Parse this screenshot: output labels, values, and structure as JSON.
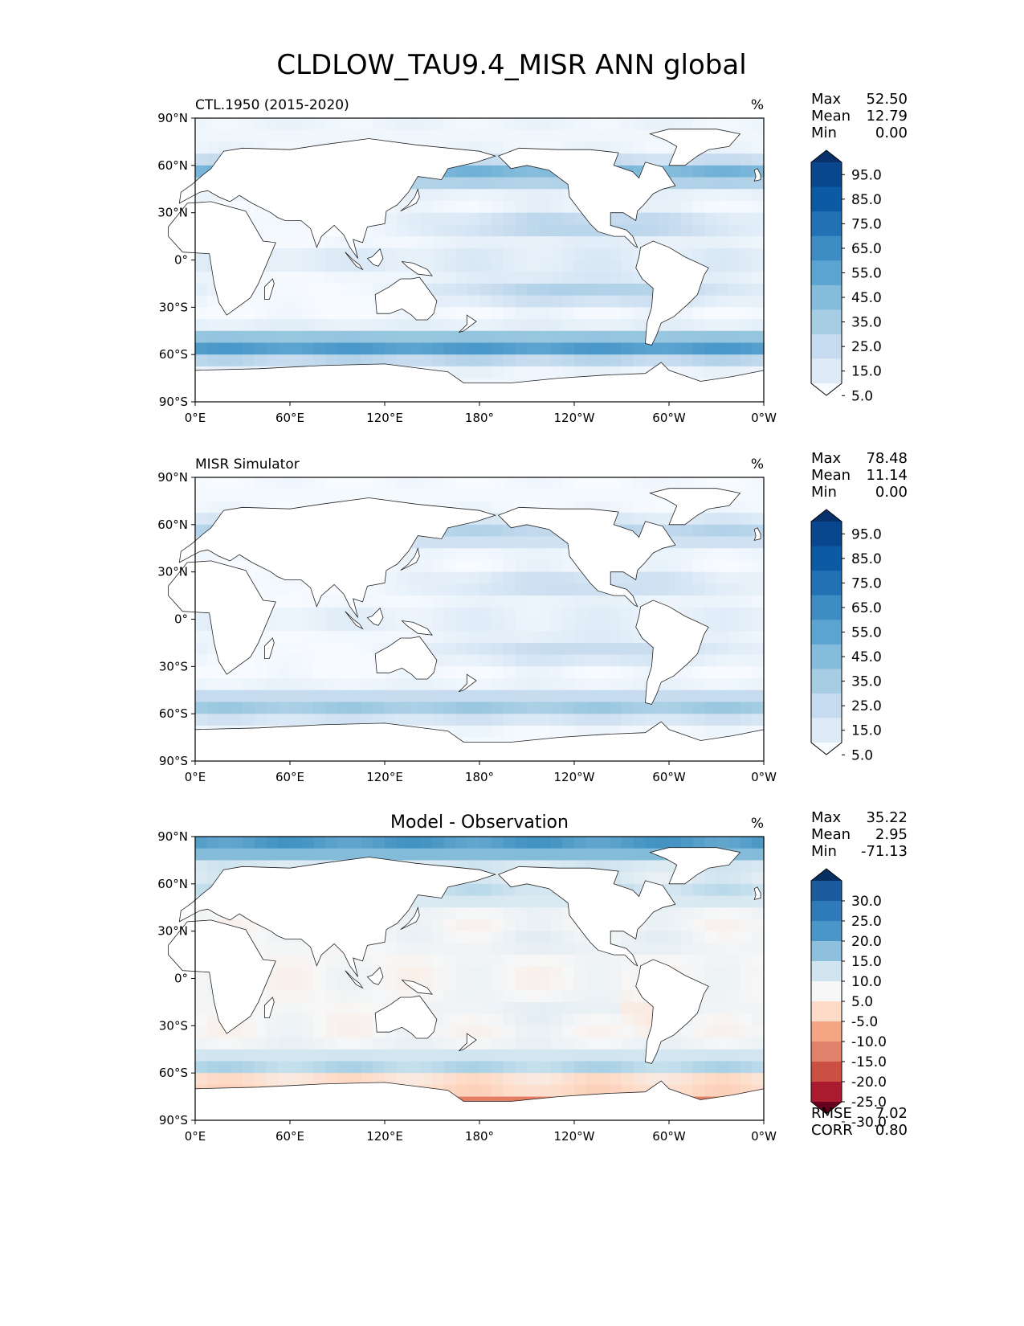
{
  "figure_title": "CLDLOW_TAU9.4_MISR ANN global",
  "colors": {
    "seq_scale": [
      "#f7fbff",
      "#deebf7",
      "#c6dbef",
      "#9ecae1",
      "#6baed6",
      "#4292c6",
      "#2171b5",
      "#08519c",
      "#08306b"
    ],
    "div_scale": [
      "#67001f",
      "#b2182b",
      "#d6604d",
      "#f4a582",
      "#fddbc7",
      "#f7f7f7",
      "#d1e5f0",
      "#92c5de",
      "#4393c3",
      "#2166ac",
      "#053061"
    ],
    "land": "#ffffff",
    "coast": "#222222"
  },
  "chart_data": [
    {
      "type": "heatmap",
      "title": "CTL.1950 (2015-2020)",
      "units": "%",
      "lat_ticks": [
        "90°N",
        "60°N",
        "30°N",
        "0°",
        "30°S",
        "60°S",
        "90°S"
      ],
      "lon_ticks": [
        "0°E",
        "60°E",
        "120°E",
        "180°",
        "120°W",
        "60°W",
        "0°W"
      ],
      "stats": [
        {
          "label": "Max",
          "value": "52.50"
        },
        {
          "label": "Mean",
          "value": "12.79"
        },
        {
          "label": "Min",
          "value": "0.00"
        }
      ],
      "colorbar_ticks": [
        "95.0",
        "85.0",
        "75.0",
        "65.0",
        "55.0",
        "45.0",
        "35.0",
        "25.0",
        "15.0",
        "5.0"
      ],
      "colorbar_colors": [
        "#08306b",
        "#08468e",
        "#0b5aa4",
        "#2171b5",
        "#3d8dc4",
        "#5ba3d0",
        "#84bcdb",
        "#a6cde4",
        "#c6dbef",
        "#deebf7",
        "#f7fbff"
      ],
      "field": {
        "mode": "seq",
        "tropics": 8,
        "subtropics": 20,
        "storm_track": 35,
        "polar": 3
      },
      "footer": []
    },
    {
      "type": "heatmap",
      "title": "MISR Simulator",
      "units": "%",
      "lat_ticks": [
        "90°N",
        "60°N",
        "30°N",
        "0°",
        "30°S",
        "60°S",
        "90°S"
      ],
      "lon_ticks": [
        "0°E",
        "60°E",
        "120°E",
        "180°",
        "120°W",
        "60°W",
        "0°W"
      ],
      "stats": [
        {
          "label": "Max",
          "value": "78.48"
        },
        {
          "label": "Mean",
          "value": "11.14"
        },
        {
          "label": "Min",
          "value": "0.00"
        }
      ],
      "colorbar_ticks": [
        "95.0",
        "85.0",
        "75.0",
        "65.0",
        "55.0",
        "45.0",
        "35.0",
        "25.0",
        "15.0",
        "5.0"
      ],
      "colorbar_colors": [
        "#08306b",
        "#08468e",
        "#0b5aa4",
        "#2171b5",
        "#3d8dc4",
        "#5ba3d0",
        "#84bcdb",
        "#a6cde4",
        "#c6dbef",
        "#deebf7",
        "#f7fbff"
      ],
      "field": {
        "mode": "seq",
        "tropics": 6,
        "subtropics": 15,
        "storm_track": 22,
        "polar": 1
      },
      "footer": []
    },
    {
      "type": "heatmap",
      "title": "Model - Observation",
      "units": "%",
      "lat_ticks": [
        "90°N",
        "60°N",
        "30°N",
        "0°",
        "30°S",
        "60°S",
        "90°S"
      ],
      "lon_ticks": [
        "0°E",
        "60°E",
        "120°E",
        "180°",
        "120°W",
        "60°W",
        "0°W"
      ],
      "stats": [
        {
          "label": "Max",
          "value": "35.22"
        },
        {
          "label": "Mean",
          "value": "2.95"
        },
        {
          "label": "Min",
          "value": "-71.13"
        }
      ],
      "colorbar_ticks": [
        "30.0",
        "25.0",
        "20.0",
        "15.0",
        "10.0",
        "5.0",
        "-5.0",
        "-10.0",
        "-15.0",
        "-20.0",
        "-25.0",
        "-30.0"
      ],
      "colorbar_colors": [
        "#053061",
        "#1c5c9e",
        "#2f7ab8",
        "#4a96c9",
        "#8ec0dd",
        "#d1e5f0",
        "#f7f7f7",
        "#fddbc7",
        "#f4a582",
        "#e0826b",
        "#cc4f44",
        "#ab1b2f",
        "#67001f"
      ],
      "field": {
        "mode": "div",
        "tropics": 0,
        "subtropics": 3,
        "storm_track": 10,
        "polar": 20
      },
      "footer": [
        {
          "label": "RMSE",
          "value": "7.02"
        },
        {
          "label": "CORR",
          "value": "0.80"
        }
      ]
    }
  ]
}
